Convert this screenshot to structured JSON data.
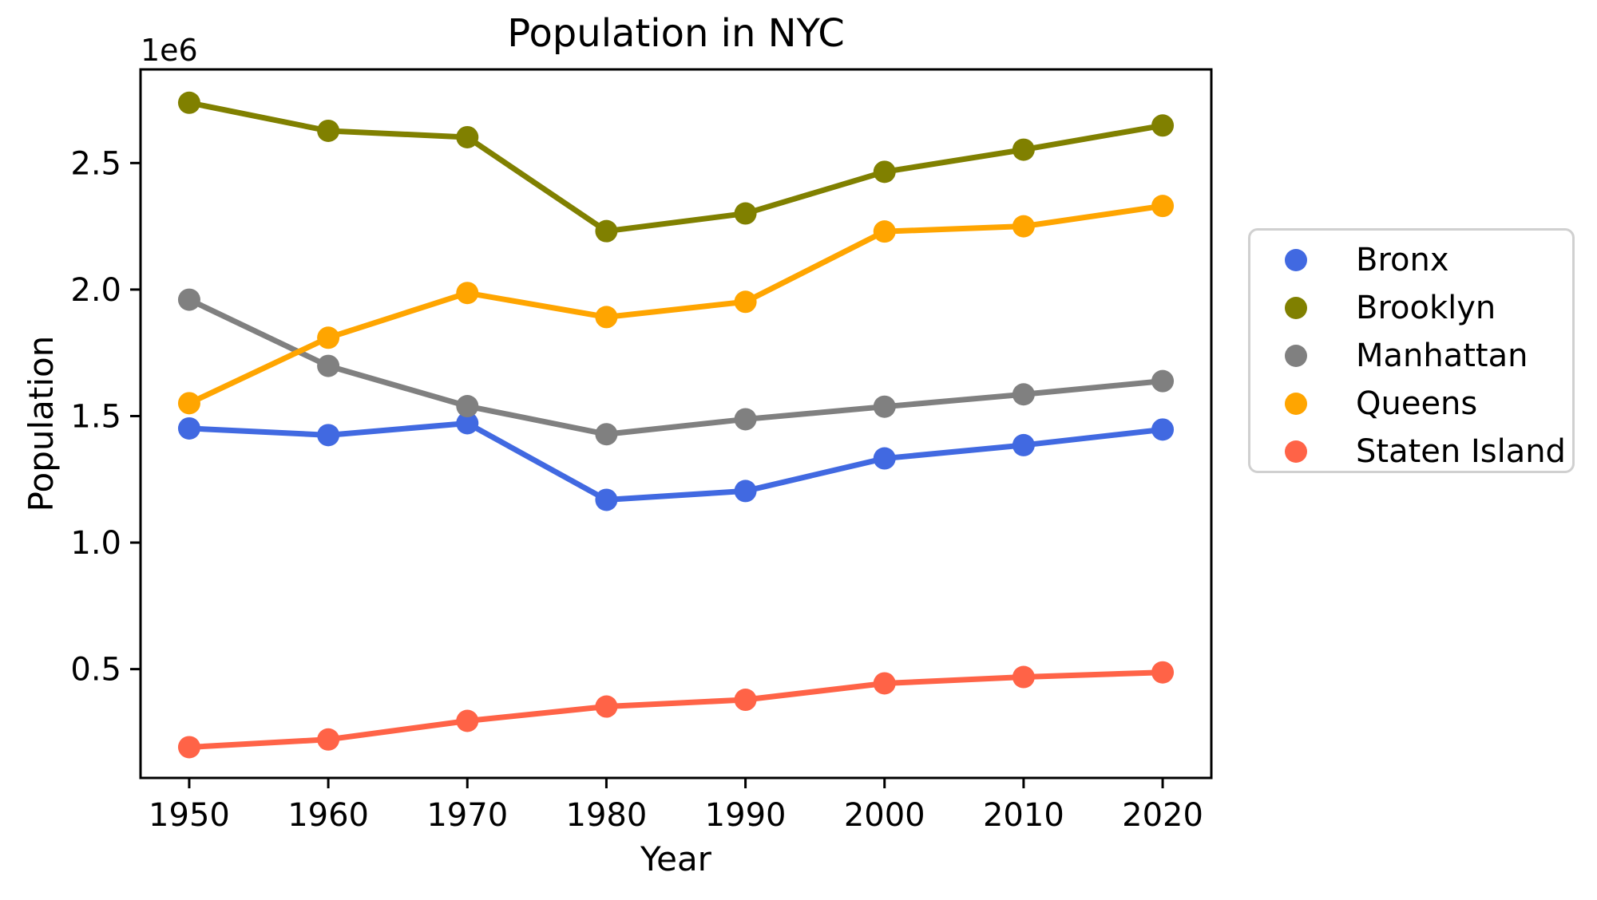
{
  "figure": {
    "title": "Population in NYC",
    "xlabel": "Year",
    "ylabel": "Population",
    "y_offset_label": "1e6"
  },
  "chart_data": {
    "type": "line",
    "title": "Population in NYC",
    "xlabel": "Year",
    "ylabel": "Population",
    "y_multiplier_label": "1e6",
    "grid": false,
    "legend_position": "outside-right",
    "marker": "o",
    "x": [
      1950,
      1960,
      1970,
      1980,
      1990,
      2000,
      2010,
      2020
    ],
    "xlim": [
      1946.5,
      2023.5
    ],
    "ylim": [
      70000,
      2870000
    ],
    "xticks": {
      "values": [
        1950,
        1960,
        1970,
        1980,
        1990,
        2000,
        2010,
        2020
      ],
      "labels": [
        "1950",
        "1960",
        "1970",
        "1980",
        "1990",
        "2000",
        "2010",
        "2020"
      ]
    },
    "yticks": {
      "values": [
        500000,
        1000000,
        1500000,
        2000000,
        2500000
      ],
      "labels": [
        "0.5",
        "1.0",
        "1.5",
        "2.0",
        "2.5"
      ]
    },
    "series": [
      {
        "name": "Bronx",
        "color": "#4169E1",
        "values": [
          1451277,
          1424815,
          1471701,
          1168972,
          1203789,
          1332650,
          1385108,
          1446788
        ]
      },
      {
        "name": "Brooklyn",
        "color": "#808000",
        "values": [
          2738175,
          2627319,
          2602012,
          2230936,
          2300664,
          2465326,
          2552911,
          2648452
        ]
      },
      {
        "name": "Manhattan",
        "color": "#808080",
        "values": [
          1960101,
          1698281,
          1539233,
          1428285,
          1487536,
          1537195,
          1585873,
          1638281
        ]
      },
      {
        "name": "Queens",
        "color": "#FFA500",
        "values": [
          1550849,
          1809578,
          1986473,
          1891325,
          1951598,
          2229379,
          2250002,
          2330295
        ]
      },
      {
        "name": "Staten Island",
        "color": "#FF6347",
        "values": [
          191555,
          221991,
          295443,
          352121,
          378977,
          443728,
          468730,
          487155
        ]
      }
    ]
  }
}
